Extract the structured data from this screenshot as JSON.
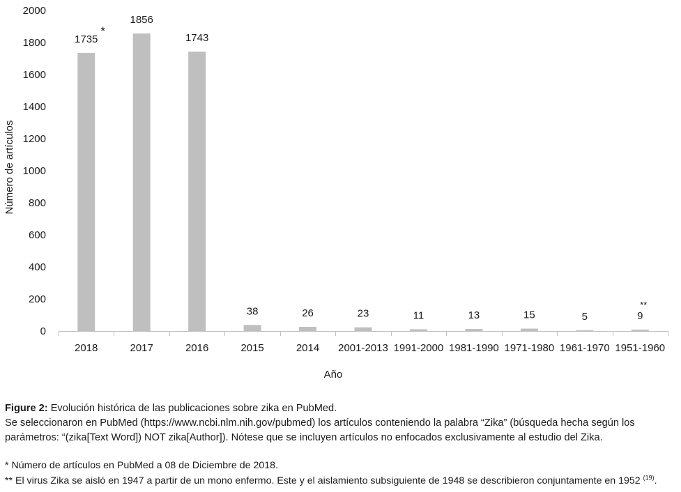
{
  "chart_data": {
    "type": "bar",
    "categories": [
      "2018",
      "2017",
      "2016",
      "2015",
      "2014",
      "2001-2013",
      "1991-2000",
      "1981-1990",
      "1971-1980",
      "1961-1970",
      "1951-1960"
    ],
    "values": [
      1735,
      1856,
      1743,
      38,
      26,
      23,
      11,
      13,
      15,
      5,
      9
    ],
    "data_labels": [
      "1735",
      "1856",
      "1743",
      "38",
      "26",
      "23",
      "11",
      "13",
      "15",
      "5",
      "9"
    ],
    "markers": [
      "*",
      "",
      "",
      "",
      "",
      "",
      "",
      "",
      "",
      "",
      "**"
    ],
    "yticks": [
      "0",
      "200",
      "400",
      "600",
      "800",
      "1000",
      "1200",
      "1400",
      "1600",
      "1800",
      "2000"
    ],
    "ylim": [
      0,
      2000
    ],
    "xlabel": "Año",
    "ylabel": "Número de artículos",
    "bar_color": "#bfbfbf",
    "grid": false
  },
  "caption": {
    "label": "Figure 2:",
    "title": "Evolución histórica de las publicaciones sobre zika en PubMed.",
    "line1": "Se seleccionaron en PubMed (https://www.ncbi.nlm.nih.gov/pubmed) los artículos conteniendo la palabra “Zika” (búsqueda hecha según los parámetros: “(zika[Text Word]) NOT zika[Author]). Nótese que se incluyen artículos no enfocados exclusivamente al estudio del Zika."
  },
  "notes": {
    "note1": "* Número de artículos en PubMed a 08 de Diciembre de 2018.",
    "note2": "** El virus Zika se aisló en 1947 a partir de un mono enfermo. Este y el aislamiento subsiguiente de 1948 se describieron conjuntamente en 1952",
    "note2_ref": "(19)",
    "note2_end": "."
  }
}
